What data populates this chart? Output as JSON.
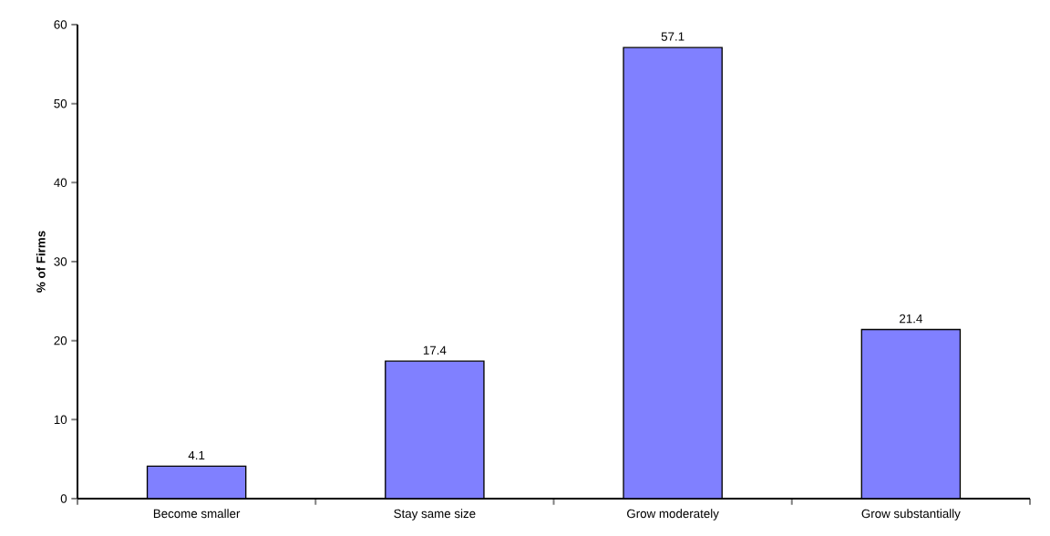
{
  "chart_data": {
    "type": "bar",
    "ylabel": "% of Firms",
    "categories": [
      "Become smaller",
      "Stay same size",
      "Grow moderately",
      "Grow substantially"
    ],
    "values": [
      4.1,
      17.4,
      57.1,
      21.4
    ],
    "color": "#8080ff",
    "ylim": [
      0,
      60
    ],
    "yticks": [
      0,
      10,
      20,
      30,
      40,
      50,
      60
    ],
    "data_labels": true,
    "grid": false
  }
}
